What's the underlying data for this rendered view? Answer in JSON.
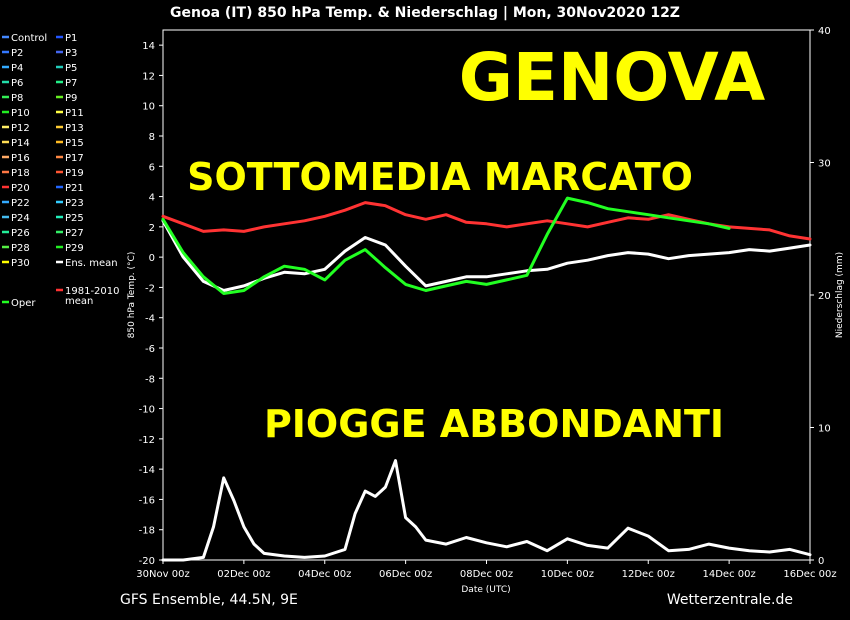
{
  "chart_data": {
    "type": "line",
    "title": "Genoa  (IT)  850 hPa Temp. & Niederschlag | Mon, 30Nov2020 12Z",
    "xlabel": "Date (UTC)",
    "ylabel": "850 hPa Temp. (°C)",
    "y2label": "Niederschlag (mm)",
    "ylim": [
      -20,
      15
    ],
    "y2lim": [
      0,
      40
    ],
    "xlim": [
      0,
      16
    ],
    "x_ticks": [
      {
        "x": 0,
        "label": "30Nov 00z"
      },
      {
        "x": 2,
        "label": "02Dec 00z"
      },
      {
        "x": 4,
        "label": "04Dec 00z"
      },
      {
        "x": 6,
        "label": "06Dec 00z"
      },
      {
        "x": 8,
        "label": "08Dec 00z"
      },
      {
        "x": 10,
        "label": "10Dec 00z"
      },
      {
        "x": 12,
        "label": "12Dec 00z"
      },
      {
        "x": 14,
        "label": "14Dec 00z"
      },
      {
        "x": 16,
        "label": "16Dec 00z"
      }
    ],
    "y_ticks": [
      14,
      12,
      10,
      8,
      6,
      4,
      2,
      0,
      -2,
      -4,
      -6,
      -8,
      -10,
      -12,
      -14,
      -16,
      -18,
      -20
    ],
    "y2_ticks": [
      40,
      30,
      20,
      10,
      0
    ],
    "grid": false,
    "legend_position": "left",
    "legend": [
      {
        "label": "Control",
        "color": "#4488ff"
      },
      {
        "label": "P1",
        "color": "#2255ff"
      },
      {
        "label": "P2",
        "color": "#3377ff"
      },
      {
        "label": "P3",
        "color": "#4466ee"
      },
      {
        "label": "P4",
        "color": "#33aaff"
      },
      {
        "label": "P5",
        "color": "#22ccbb"
      },
      {
        "label": "P6",
        "color": "#22ddaa"
      },
      {
        "label": "P7",
        "color": "#22ee88"
      },
      {
        "label": "P8",
        "color": "#33ee55"
      },
      {
        "label": "P9",
        "color": "#66ee22"
      },
      {
        "label": "P10",
        "color": "#22ee22"
      },
      {
        "label": "P11",
        "color": "#ffff44"
      },
      {
        "label": "P12",
        "color": "#ffee66"
      },
      {
        "label": "P13",
        "color": "#ffcc33"
      },
      {
        "label": "P14",
        "color": "#ffdd55"
      },
      {
        "label": "P15",
        "color": "#ffbb22"
      },
      {
        "label": "P16",
        "color": "#ffaa66"
      },
      {
        "label": "P17",
        "color": "#ff8844"
      },
      {
        "label": "P18",
        "color": "#ff7744"
      },
      {
        "label": "P19",
        "color": "#ff5533"
      },
      {
        "label": "P20",
        "color": "#ff3333"
      },
      {
        "label": "P21",
        "color": "#2266ff"
      },
      {
        "label": "P22",
        "color": "#33aaff"
      },
      {
        "label": "P23",
        "color": "#33ccff"
      },
      {
        "label": "P24",
        "color": "#44bbee"
      },
      {
        "label": "P25",
        "color": "#22eebb"
      },
      {
        "label": "P26",
        "color": "#22ee99"
      },
      {
        "label": "P27",
        "color": "#33ee66"
      },
      {
        "label": "P28",
        "color": "#55ee44"
      },
      {
        "label": "P29",
        "color": "#22ee22"
      },
      {
        "label": "P30",
        "color": "#ffff00"
      },
      {
        "label": "Ens. mean",
        "color": "#ffffff"
      },
      {
        "label": "Oper",
        "color": "#22ff22"
      },
      {
        "label": "1981-2010 mean",
        "color": "#ff3333"
      }
    ],
    "series": [
      {
        "name": "1981-2010 mean",
        "role": "temp",
        "color": "#ff3333",
        "x": [
          0,
          0.5,
          1,
          1.5,
          2,
          2.5,
          3,
          3.5,
          4,
          4.5,
          5,
          5.5,
          6,
          6.5,
          7,
          7.5,
          8,
          8.5,
          9,
          9.5,
          10,
          10.5,
          11,
          11.5,
          12,
          12.5,
          13,
          13.5,
          14,
          14.5,
          15,
          15.5,
          16
        ],
        "values": [
          2.7,
          2.2,
          1.7,
          1.8,
          1.7,
          2.0,
          2.2,
          2.4,
          2.7,
          3.1,
          3.6,
          3.4,
          2.8,
          2.5,
          2.8,
          2.3,
          2.2,
          2.0,
          2.2,
          2.4,
          2.2,
          2.0,
          2.3,
          2.6,
          2.5,
          2.8,
          2.5,
          2.2,
          2.0,
          1.9,
          1.8,
          1.4,
          1.2
        ]
      },
      {
        "name": "Ens. mean",
        "role": "temp",
        "color": "#ffffff",
        "x": [
          0,
          0.5,
          1,
          1.5,
          2,
          2.5,
          3,
          3.5,
          4,
          4.5,
          5,
          5.5,
          6,
          6.5,
          7,
          7.5,
          8,
          8.5,
          9,
          9.5,
          10,
          10.5,
          11,
          11.5,
          12,
          12.5,
          13,
          13.5,
          14,
          14.5,
          15,
          15.5,
          16
        ],
        "values": [
          2.4,
          0,
          -1.6,
          -2.2,
          -1.9,
          -1.4,
          -1.0,
          -1.1,
          -0.8,
          0.4,
          1.3,
          0.8,
          -0.6,
          -1.9,
          -1.6,
          -1.3,
          -1.3,
          -1.1,
          -0.9,
          -0.8,
          -0.4,
          -0.2,
          0.1,
          0.3,
          0.2,
          -0.1,
          0.1,
          0.2,
          0.3,
          0.5,
          0.4,
          0.6,
          0.8
        ]
      },
      {
        "name": "Oper",
        "role": "temp",
        "color": "#22ff22",
        "x": [
          0,
          0.5,
          1,
          1.5,
          2,
          2.5,
          3,
          3.5,
          4,
          4.5,
          5,
          5.5,
          6,
          6.5,
          7,
          7.5,
          8,
          8.5,
          9,
          9.5,
          10,
          10.5,
          11,
          11.5,
          12,
          12.5,
          13,
          13.5,
          14
        ],
        "values": [
          2.5,
          0.3,
          -1.3,
          -2.4,
          -2.2,
          -1.3,
          -0.6,
          -0.8,
          -1.5,
          -0.2,
          0.5,
          -0.7,
          -1.8,
          -2.2,
          -1.9,
          -1.6,
          -1.8,
          -1.5,
          -1.2,
          1.5,
          3.9,
          3.6,
          3.2,
          3.0,
          2.8,
          2.6,
          2.4,
          2.2,
          1.9
        ]
      },
      {
        "name": "Ens. mean",
        "role": "precip",
        "color": "#ffffff",
        "x": [
          0,
          0.5,
          1,
          1.25,
          1.5,
          1.75,
          2,
          2.25,
          2.5,
          3,
          3.5,
          4,
          4.5,
          4.75,
          5,
          5.25,
          5.5,
          5.75,
          6,
          6.25,
          6.5,
          7,
          7.5,
          8,
          8.5,
          9,
          9.5,
          10,
          10.5,
          11,
          11.5,
          12,
          12.5,
          13,
          13.5,
          14,
          14.5,
          15,
          15.5,
          16
        ],
        "values": [
          0,
          0,
          0.2,
          2.5,
          6.2,
          4.5,
          2.5,
          1.2,
          0.5,
          0.3,
          0.2,
          0.3,
          0.8,
          3.5,
          5.2,
          4.8,
          5.5,
          7.5,
          3.2,
          2.5,
          1.5,
          1.2,
          1.7,
          1.3,
          1.0,
          1.4,
          0.7,
          1.6,
          1.1,
          0.9,
          2.4,
          1.8,
          0.7,
          0.8,
          1.2,
          0.9,
          0.7,
          0.6,
          0.8,
          0.4
        ]
      }
    ],
    "annotations": [
      {
        "text": "GENOVA",
        "color": "#ffff00"
      },
      {
        "text": "SOTTOMEDIA MARCATO",
        "color": "#ffff00"
      },
      {
        "text": "PIOGGE ABBONDANTI",
        "color": "#ffff00"
      }
    ],
    "footer_left": "GFS Ensemble, 44.5N, 9E",
    "footer_right": "Wetterzentrale.de"
  }
}
